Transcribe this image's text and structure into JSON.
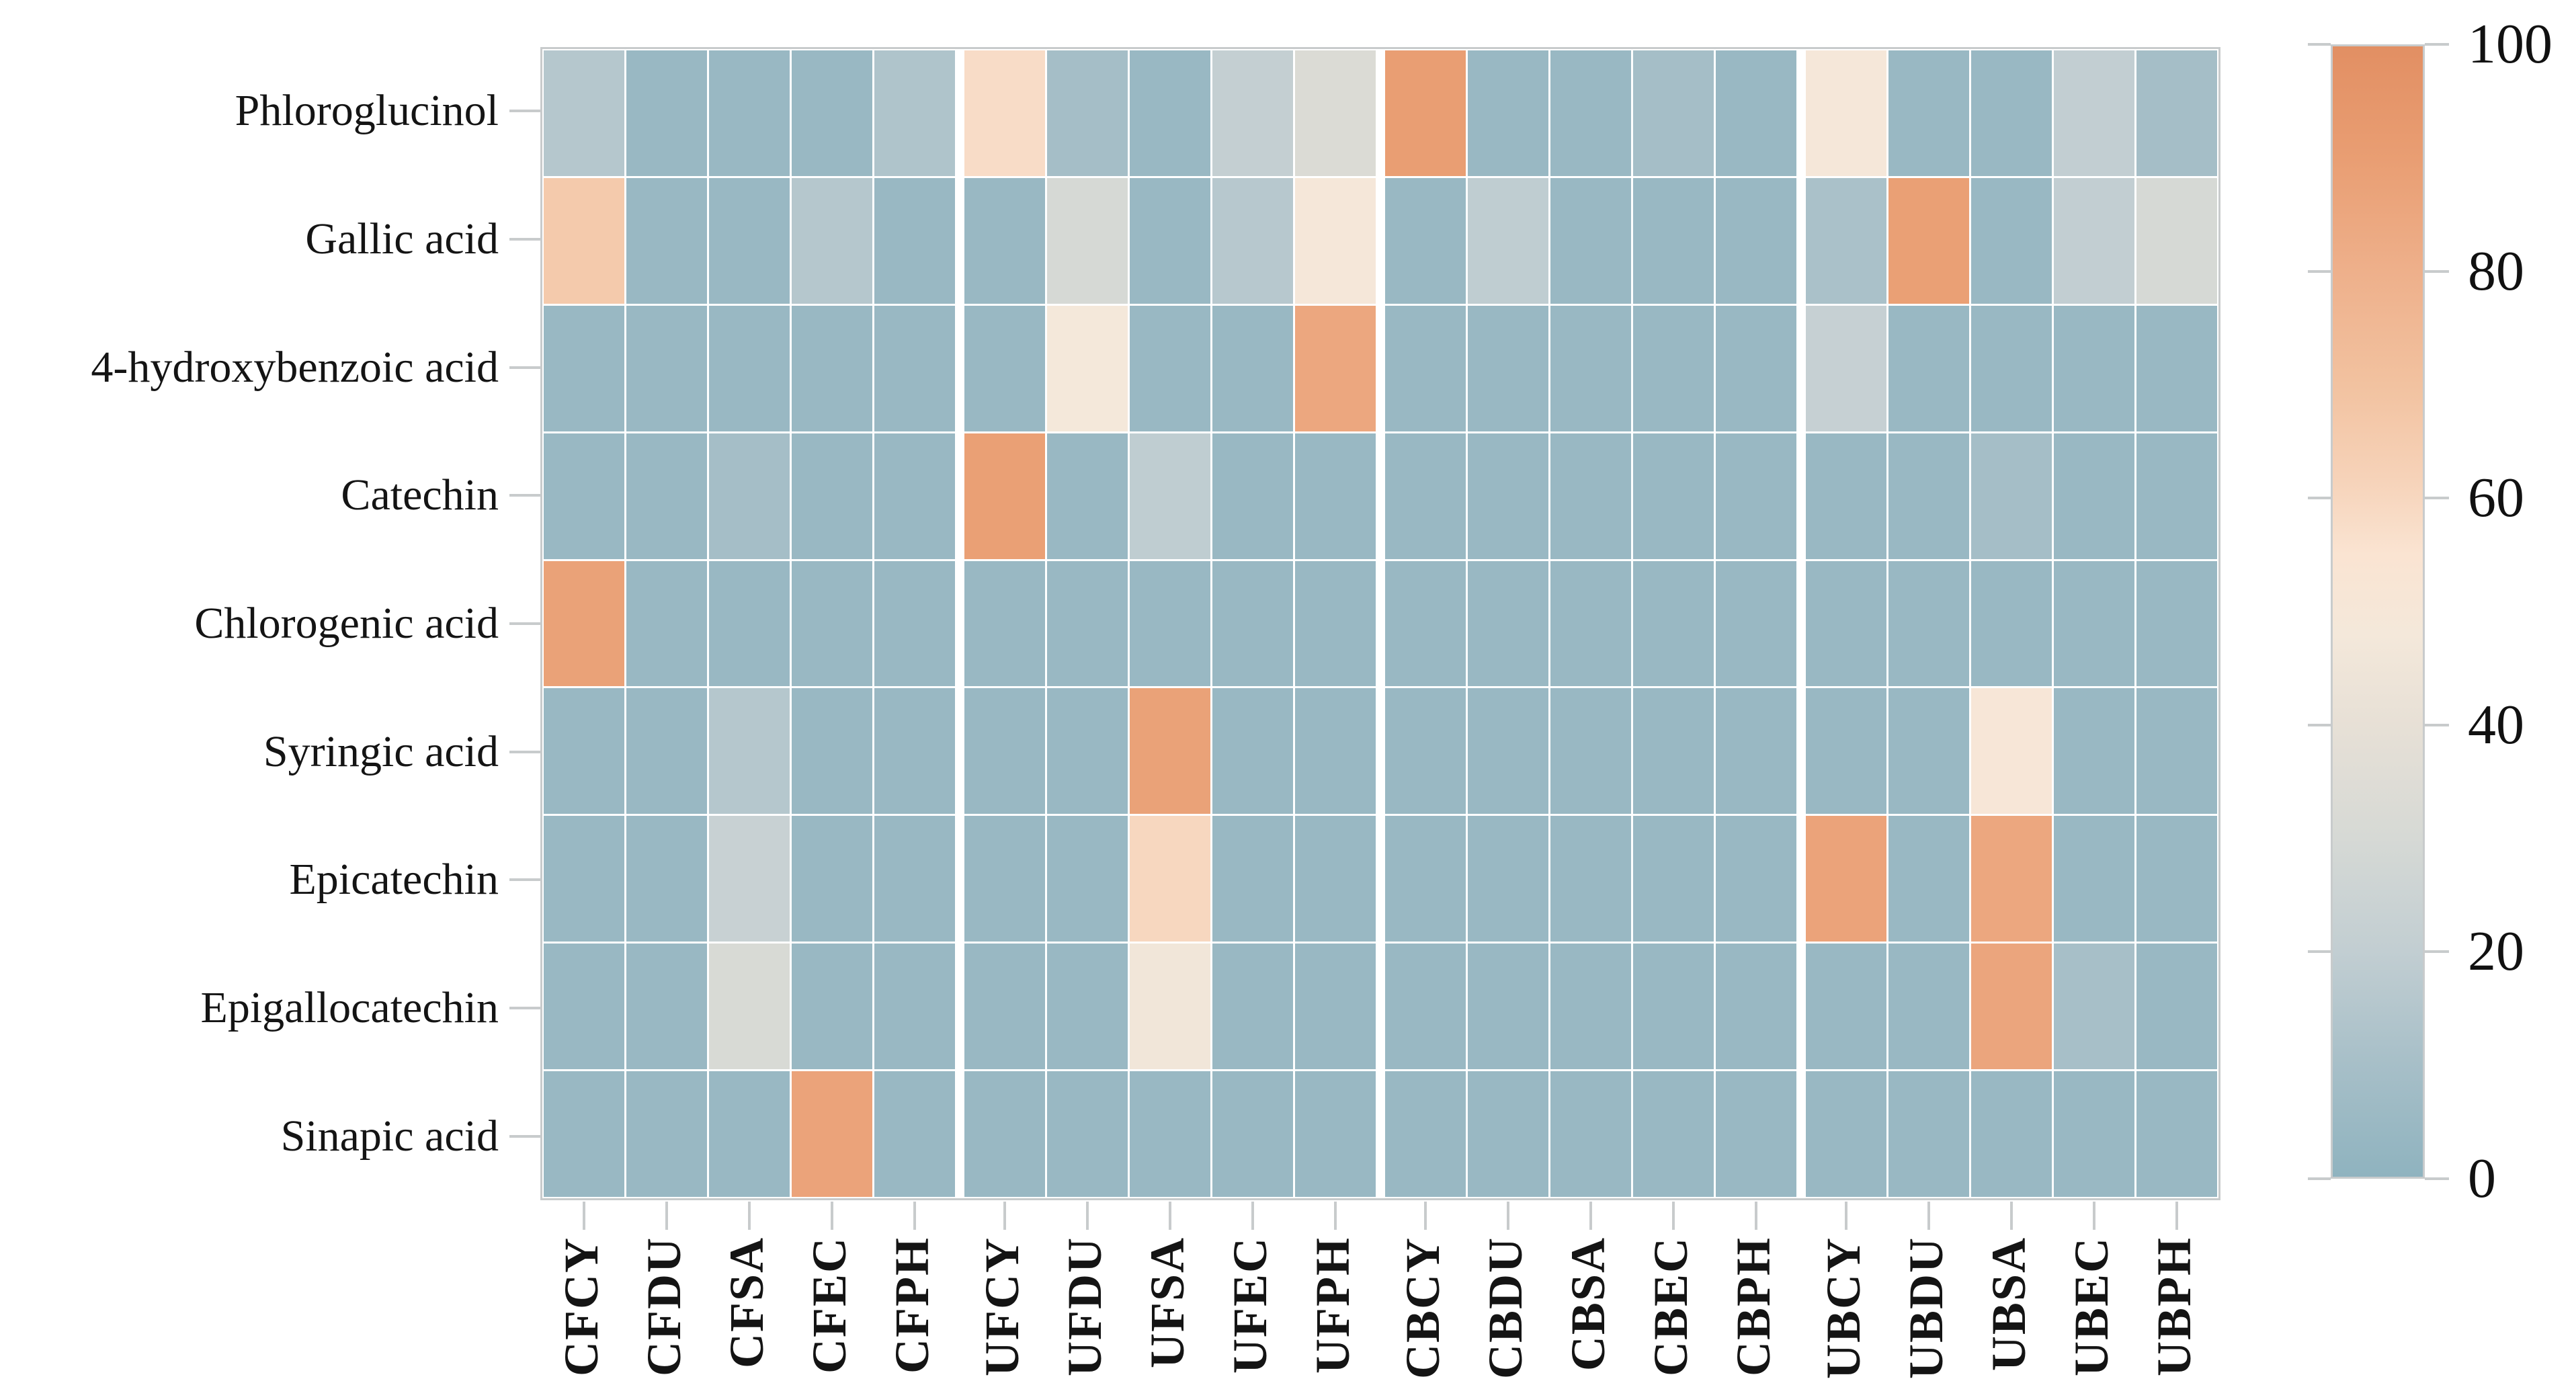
{
  "chart_data": {
    "type": "heatmap",
    "title": "",
    "rows": [
      "Phloroglucinol",
      "Gallic acid",
      "4-hydroxybenzoic acid",
      "Catechin",
      "Chlorogenic acid",
      "Syringic acid",
      "Epicatechin",
      "Epigallocatechin",
      "Sinapic acid"
    ],
    "columns": [
      "CFCY",
      "CFDU",
      "CFSA",
      "CFEC",
      "CFPH",
      "UFCY",
      "UFDU",
      "UFSA",
      "UFEC",
      "UFPH",
      "CBCY",
      "CBDU",
      "CBSA",
      "CBEC",
      "CBPH",
      "UBCY",
      "UBDU",
      "UBSA",
      "UBEC",
      "UBPH"
    ],
    "column_group_size": 5,
    "values": [
      [
        15,
        4,
        4,
        4,
        13,
        58,
        9,
        4,
        21,
        33,
        90,
        4,
        4,
        9,
        4,
        49,
        4,
        4,
        20,
        9
      ],
      [
        66,
        4,
        4,
        15,
        4,
        4,
        30,
        4,
        16,
        49,
        4,
        19,
        4,
        4,
        4,
        11,
        89,
        4,
        20,
        30
      ],
      [
        4,
        4,
        4,
        4,
        4,
        4,
        48,
        4,
        4,
        85,
        4,
        4,
        4,
        4,
        4,
        22,
        4,
        4,
        4,
        4
      ],
      [
        4,
        4,
        9,
        4,
        4,
        89,
        4,
        19,
        4,
        4,
        4,
        4,
        4,
        4,
        4,
        4,
        4,
        9,
        4,
        4
      ],
      [
        88,
        4,
        4,
        4,
        4,
        4,
        4,
        4,
        4,
        4,
        4,
        4,
        4,
        4,
        4,
        4,
        4,
        4,
        4,
        4
      ],
      [
        4,
        4,
        15,
        4,
        4,
        4,
        4,
        88,
        4,
        4,
        4,
        4,
        4,
        4,
        4,
        4,
        4,
        51,
        4,
        4
      ],
      [
        4,
        4,
        23,
        4,
        4,
        4,
        4,
        60,
        4,
        4,
        4,
        4,
        4,
        4,
        4,
        87,
        4,
        85,
        4,
        4
      ],
      [
        4,
        4,
        31,
        4,
        4,
        4,
        4,
        46,
        4,
        4,
        4,
        4,
        4,
        4,
        4,
        4,
        4,
        86,
        10,
        4
      ],
      [
        4,
        4,
        4,
        87,
        4,
        4,
        4,
        4,
        4,
        4,
        4,
        4,
        4,
        4,
        4,
        4,
        4,
        4,
        4,
        4
      ]
    ],
    "value_range": [
      0,
      100
    ],
    "colorbar_ticks": [
      0,
      20,
      40,
      60,
      80,
      100
    ],
    "colormap_stops": [
      {
        "value": 0,
        "color": "#8fb3bf"
      },
      {
        "value": 10,
        "color": "#a7bfc8"
      },
      {
        "value": 20,
        "color": "#c2ced2"
      },
      {
        "value": 30,
        "color": "#d6d9d5"
      },
      {
        "value": 40,
        "color": "#e7e0d6"
      },
      {
        "value": 48,
        "color": "#f4e8da"
      },
      {
        "value": 55,
        "color": "#fae4d2"
      },
      {
        "value": 62,
        "color": "#f6d2b8"
      },
      {
        "value": 70,
        "color": "#f2c2a0"
      },
      {
        "value": 80,
        "color": "#eeb08b"
      },
      {
        "value": 90,
        "color": "#e99e73"
      },
      {
        "value": 100,
        "color": "#e28f63"
      }
    ],
    "colors": {
      "background": "#ffffff",
      "frame": "#c8cbcc",
      "tick": "#c8cbcc",
      "label": "#141414",
      "gap": "#ffffff"
    },
    "legend_position": "right-colorbar",
    "grid": "white-cell-gaps"
  }
}
